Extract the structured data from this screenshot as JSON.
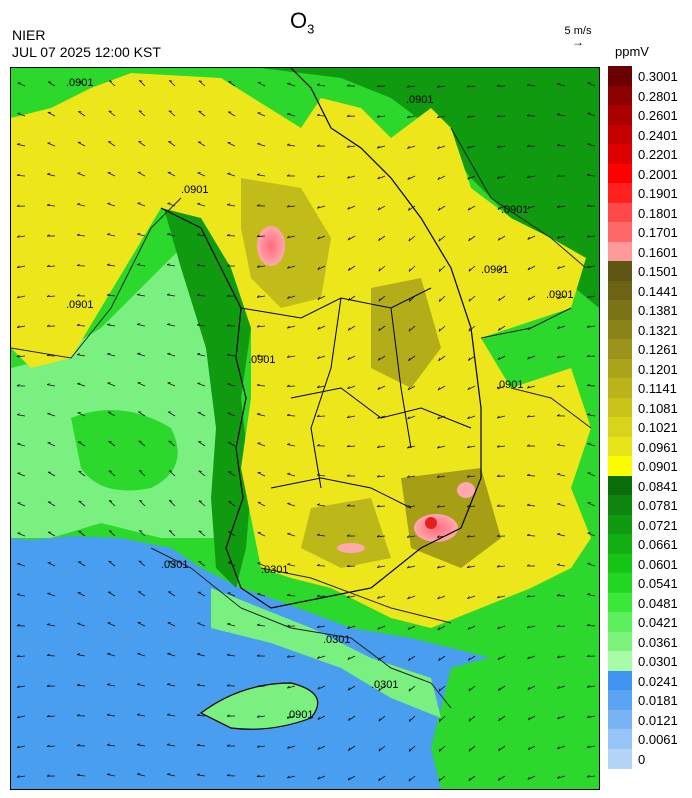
{
  "header": {
    "title_main": "O",
    "title_sub": "3",
    "organization": "NIER",
    "timestamp": "JUL 07 2025 12:00 KST",
    "wind_ref_label": "5 m/s",
    "wind_ref_arrow": "→",
    "unit": "ppmV"
  },
  "map": {
    "contour_labels": [
      ".0901",
      ".0901",
      ".0901",
      ".0901",
      ".0901",
      ".0901",
      ".0901",
      ".0901",
      ".0901",
      ".0301",
      ".0301",
      ".0301",
      ".0301",
      ".0901"
    ],
    "colors": {
      "sea_blue": "#4a9eef",
      "light_blue": "#6fb0f2",
      "light_green": "#79f07f",
      "green": "#2bd82b",
      "dark_green": "#0f9a0f",
      "yellow": "#ece61a",
      "yellow_dark": "#cfcc14",
      "olive": "#8f8614",
      "pink": "#ff9aa4",
      "red": "#e22020"
    }
  },
  "legend": {
    "levels": [
      {
        "label": "0.3001",
        "color": "#6b0000"
      },
      {
        "label": "0.2801",
        "color": "#8c0000"
      },
      {
        "label": "0.2601",
        "color": "#aa0000"
      },
      {
        "label": "0.2401",
        "color": "#c40000"
      },
      {
        "label": "0.2201",
        "color": "#de0000"
      },
      {
        "label": "0.2001",
        "color": "#ff0000"
      },
      {
        "label": "0.1901",
        "color": "#ff2020"
      },
      {
        "label": "0.1801",
        "color": "#ff4848"
      },
      {
        "label": "0.1701",
        "color": "#ff6868"
      },
      {
        "label": "0.1601",
        "color": "#ff9a9a"
      },
      {
        "label": "0.1501",
        "color": "#5e5612"
      },
      {
        "label": "0.1441",
        "color": "#6c6414"
      },
      {
        "label": "0.1381",
        "color": "#7c7416"
      },
      {
        "label": "0.1321",
        "color": "#8a8418"
      },
      {
        "label": "0.1261",
        "color": "#9a941a"
      },
      {
        "label": "0.1201",
        "color": "#aaa41a"
      },
      {
        "label": "0.1141",
        "color": "#bab41a"
      },
      {
        "label": "0.1081",
        "color": "#c8c41a"
      },
      {
        "label": "0.1021",
        "color": "#d8d41a"
      },
      {
        "label": "0.0961",
        "color": "#e8e41c"
      },
      {
        "label": "0.0901",
        "color": "#fcfc00"
      },
      {
        "label": "0.0841",
        "color": "#0a6e0a"
      },
      {
        "label": "0.0781",
        "color": "#0e850e"
      },
      {
        "label": "0.0721",
        "color": "#0f9a0f"
      },
      {
        "label": "0.0661",
        "color": "#12ae12"
      },
      {
        "label": "0.0601",
        "color": "#16c416"
      },
      {
        "label": "0.0541",
        "color": "#22d822"
      },
      {
        "label": "0.0481",
        "color": "#3ae83a"
      },
      {
        "label": "0.0421",
        "color": "#5cf05c"
      },
      {
        "label": "0.0361",
        "color": "#7cf47c"
      },
      {
        "label": "0.0301",
        "color": "#a8fca8"
      },
      {
        "label": "0.0241",
        "color": "#3f94f0"
      },
      {
        "label": "0.0181",
        "color": "#5aa4f2"
      },
      {
        "label": "0.0121",
        "color": "#78b4f4"
      },
      {
        "label": "0.0061",
        "color": "#96c4f6"
      },
      {
        "label": "0",
        "color": "#b4d4f8"
      }
    ]
  }
}
